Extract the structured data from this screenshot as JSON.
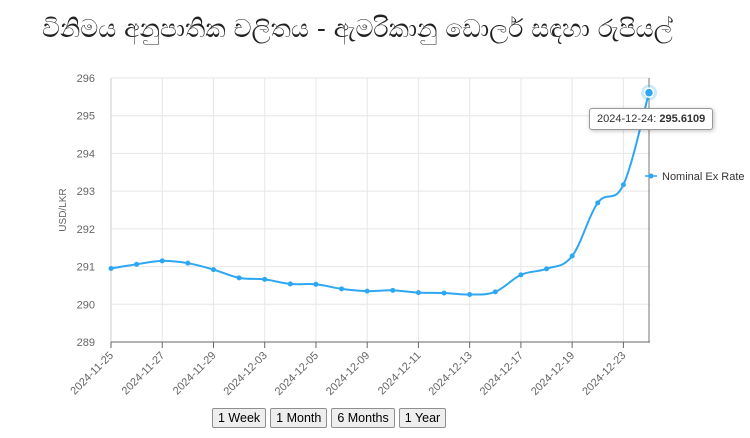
{
  "title": "විනිමය අනුපාතික චලිතය - ඇමරිකානු ඩොලර් සඳහා රුපියල්",
  "range_buttons": [
    "1 Week",
    "1 Month",
    "6 Months",
    "1 Year"
  ],
  "tooltip": {
    "date": "2024-12-24",
    "value": "295.6109"
  },
  "chart_data": {
    "type": "line",
    "title": "විනිමය අනුපාතික චලිතය - ඇමරිකානු ඩොලර් සඳහා රුපියල්",
    "xlabel": "",
    "ylabel": "USD/LKR",
    "ylim": [
      289,
      296
    ],
    "yticks": [
      289,
      290,
      291,
      292,
      293,
      294,
      295,
      296
    ],
    "grid": true,
    "legend": "right",
    "line_color": "#2ea7f3",
    "x_tick_labels": [
      "2024-11-25",
      "2024-11-27",
      "2024-11-29",
      "2024-12-03",
      "2024-12-05",
      "2024-12-09",
      "2024-12-11",
      "2024-12-13",
      "2024-12-17",
      "2024-12-19",
      "2024-12-23"
    ],
    "x": [
      "2024-11-25",
      "2024-11-26",
      "2024-11-27",
      "2024-11-28",
      "2024-11-29",
      "2024-12-02",
      "2024-12-03",
      "2024-12-04",
      "2024-12-05",
      "2024-12-06",
      "2024-12-09",
      "2024-12-10",
      "2024-12-11",
      "2024-12-12",
      "2024-12-13",
      "2024-12-16",
      "2024-12-17",
      "2024-12-18",
      "2024-12-19",
      "2024-12-20",
      "2024-12-23",
      "2024-12-24"
    ],
    "series": [
      {
        "name": "Nominal Ex Rate",
        "values": [
          290.95,
          291.06,
          291.15,
          291.09,
          290.92,
          290.7,
          290.66,
          290.54,
          290.53,
          290.41,
          290.35,
          290.37,
          290.31,
          290.3,
          290.26,
          290.33,
          290.78,
          290.94,
          291.28,
          292.69,
          293.17,
          295.6109
        ]
      }
    ]
  }
}
